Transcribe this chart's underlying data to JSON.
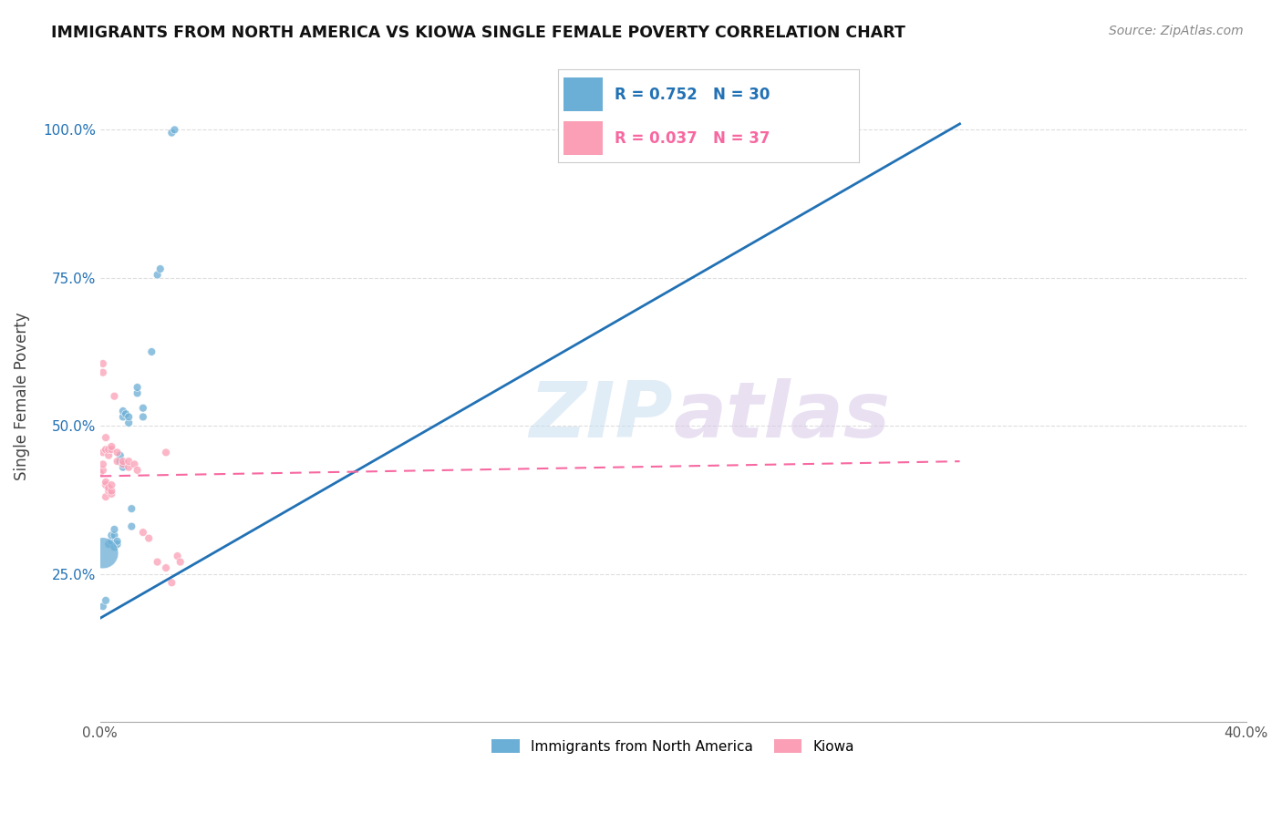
{
  "title": "IMMIGRANTS FROM NORTH AMERICA VS KIOWA SINGLE FEMALE POVERTY CORRELATION CHART",
  "source": "Source: ZipAtlas.com",
  "ylabel": "Single Female Poverty",
  "watermark": "ZIPatlas",
  "blue_color": "#6baed6",
  "pink_color": "#fa9fb5",
  "blue_line_color": "#2171b5",
  "pink_line_color": "#f768a1",
  "legend_blue_r": "0.752",
  "legend_blue_n": "30",
  "legend_pink_r": "0.037",
  "legend_pink_n": "37",
  "legend_label_blue": "Immigrants from North America",
  "legend_label_pink": "Kiowa",
  "xlim": [
    0,
    0.4
  ],
  "ylim": [
    0,
    1.1
  ],
  "blue_scatter": [
    [
      0.001,
      0.195
    ],
    [
      0.002,
      0.205
    ],
    [
      0.003,
      0.3
    ],
    [
      0.004,
      0.305
    ],
    [
      0.004,
      0.315
    ],
    [
      0.005,
      0.315
    ],
    [
      0.005,
      0.325
    ],
    [
      0.005,
      0.295
    ],
    [
      0.006,
      0.3
    ],
    [
      0.006,
      0.305
    ],
    [
      0.007,
      0.44
    ],
    [
      0.007,
      0.45
    ],
    [
      0.008,
      0.43
    ],
    [
      0.008,
      0.515
    ],
    [
      0.008,
      0.525
    ],
    [
      0.009,
      0.52
    ],
    [
      0.01,
      0.505
    ],
    [
      0.01,
      0.515
    ],
    [
      0.011,
      0.33
    ],
    [
      0.011,
      0.36
    ],
    [
      0.013,
      0.555
    ],
    [
      0.013,
      0.565
    ],
    [
      0.015,
      0.515
    ],
    [
      0.015,
      0.53
    ],
    [
      0.018,
      0.625
    ],
    [
      0.02,
      0.755
    ],
    [
      0.021,
      0.765
    ],
    [
      0.025,
      0.995
    ],
    [
      0.026,
      1.0
    ],
    [
      0.001,
      0.285
    ]
  ],
  "blue_sizes": [
    40,
    40,
    40,
    40,
    40,
    40,
    40,
    40,
    40,
    40,
    40,
    40,
    40,
    40,
    40,
    40,
    40,
    40,
    40,
    40,
    40,
    40,
    40,
    40,
    40,
    40,
    40,
    40,
    40,
    600
  ],
  "pink_scatter": [
    [
      0.0,
      0.42
    ],
    [
      0.001,
      0.59
    ],
    [
      0.001,
      0.605
    ],
    [
      0.001,
      0.425
    ],
    [
      0.001,
      0.435
    ],
    [
      0.001,
      0.455
    ],
    [
      0.002,
      0.38
    ],
    [
      0.002,
      0.4
    ],
    [
      0.002,
      0.405
    ],
    [
      0.002,
      0.46
    ],
    [
      0.002,
      0.48
    ],
    [
      0.003,
      0.39
    ],
    [
      0.003,
      0.395
    ],
    [
      0.003,
      0.45
    ],
    [
      0.003,
      0.46
    ],
    [
      0.004,
      0.385
    ],
    [
      0.004,
      0.39
    ],
    [
      0.004,
      0.4
    ],
    [
      0.004,
      0.46
    ],
    [
      0.004,
      0.465
    ],
    [
      0.005,
      0.55
    ],
    [
      0.006,
      0.44
    ],
    [
      0.006,
      0.455
    ],
    [
      0.008,
      0.435
    ],
    [
      0.008,
      0.44
    ],
    [
      0.01,
      0.43
    ],
    [
      0.01,
      0.44
    ],
    [
      0.012,
      0.435
    ],
    [
      0.013,
      0.425
    ],
    [
      0.015,
      0.32
    ],
    [
      0.017,
      0.31
    ],
    [
      0.02,
      0.27
    ],
    [
      0.023,
      0.26
    ],
    [
      0.023,
      0.455
    ],
    [
      0.025,
      0.235
    ],
    [
      0.027,
      0.28
    ],
    [
      0.028,
      0.27
    ]
  ],
  "pink_sizes": [
    40,
    40,
    40,
    40,
    40,
    40,
    40,
    40,
    40,
    40,
    40,
    40,
    40,
    40,
    40,
    40,
    40,
    40,
    40,
    40,
    40,
    40,
    40,
    40,
    40,
    40,
    40,
    40,
    40,
    40,
    40,
    40,
    40,
    40,
    40,
    40,
    40
  ],
  "blue_line": [
    [
      0.0,
      0.175
    ],
    [
      0.3,
      1.01
    ]
  ],
  "pink_line": [
    [
      0.0,
      0.415
    ],
    [
      0.3,
      0.44
    ]
  ],
  "xticks": [
    0.0,
    0.05,
    0.1,
    0.15,
    0.2,
    0.25,
    0.3,
    0.35,
    0.4
  ],
  "xtick_labels": [
    "0.0%",
    "",
    "",
    "",
    "",
    "",
    "",
    "",
    "40.0%"
  ],
  "yticks": [
    0.0,
    0.25,
    0.5,
    0.75,
    1.0
  ],
  "ytick_labels": [
    "",
    "25.0%",
    "50.0%",
    "75.0%",
    "100.0%"
  ]
}
